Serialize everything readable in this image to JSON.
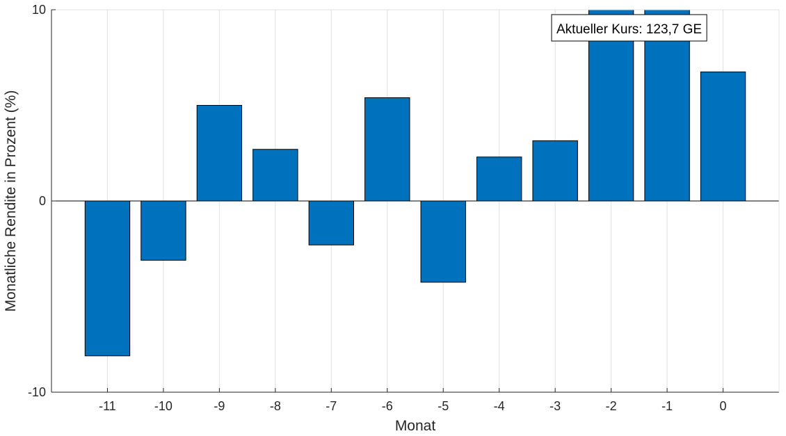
{
  "chart_data": {
    "type": "bar",
    "categories": [
      "-11",
      "-10",
      "-9",
      "-8",
      "-7",
      "-6",
      "-5",
      "-4",
      "-3",
      "-2",
      "-1",
      "0"
    ],
    "x": [
      -11,
      -10,
      -9,
      -8,
      -7,
      -6,
      -5,
      -4,
      -3,
      -2,
      -1,
      0
    ],
    "values": [
      -8.1,
      -3.1,
      5.0,
      2.7,
      -2.3,
      5.4,
      -4.25,
      2.3,
      3.15,
      10.5,
      11.0,
      6.75
    ],
    "xlabel": "Monat",
    "ylabel": "Monatliche Rendite in Prozent (%)",
    "xlim": [
      -12,
      1
    ],
    "ylim": [
      -10,
      10
    ],
    "yticks": [
      -10,
      0,
      10
    ],
    "ytick_labels": [
      "-10",
      "0",
      "10"
    ],
    "grid": "vertical",
    "annotation": "Aktueller Kurs: 123,7 GE",
    "colors": {
      "bar": "#0072bd",
      "bar_edge": "#000000",
      "grid": "#e0e0e0",
      "axis": "#262626"
    }
  }
}
